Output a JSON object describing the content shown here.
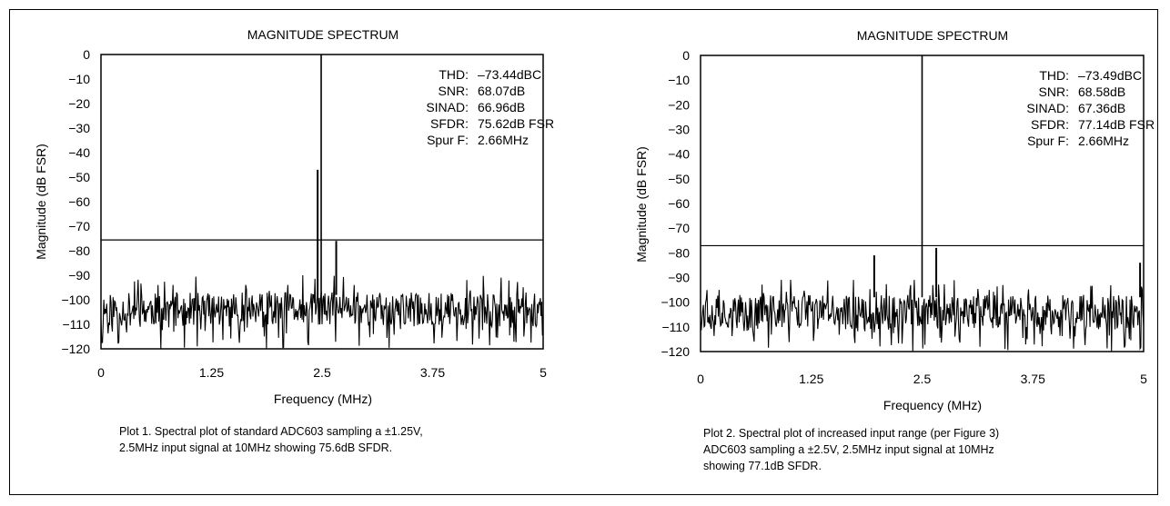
{
  "chart_data": [
    {
      "type": "line",
      "title": "MAGNITUDE SPECTRUM",
      "xlabel": "Frequency (MHz)",
      "ylabel": "Magnitude (dB FSR)",
      "xlim": [
        0,
        5
      ],
      "ylim": [
        -120,
        0
      ],
      "xticks": [
        "0",
        "1.25",
        "2.5",
        "3.75",
        "5"
      ],
      "yticks": [
        "0",
        "−10",
        "−20",
        "−30",
        "−40",
        "−50",
        "−60",
        "−70",
        "−80",
        "−90",
        "−100",
        "−110",
        "−120"
      ],
      "reference_line_db": -75.6,
      "noise_floor_db": -104,
      "noise_seed": 11,
      "spurs": [
        {
          "x": 2.45,
          "y": -47
        },
        {
          "x": 2.49,
          "y": 0
        },
        {
          "x": 2.66,
          "y": -76
        }
      ],
      "stats": [
        {
          "label": "THD:",
          "value": "–73.44dBC"
        },
        {
          "label": "SNR:",
          "value": "68.07dB"
        },
        {
          "label": "SINAD:",
          "value": "66.96dB"
        },
        {
          "label": "SFDR:",
          "value": "75.62dB FSR"
        },
        {
          "label": "Spur F:",
          "value": "2.66MHz"
        }
      ],
      "caption": "Plot 1. Spectral plot of standard ADC603 sampling a ±1.25V,\n2.5MHz input signal at 10MHz showing 75.6dB SFDR."
    },
    {
      "type": "line",
      "title": "MAGNITUDE SPECTRUM",
      "xlabel": "Frequency (MHz)",
      "ylabel": "Magnitude (dB FSR)",
      "xlim": [
        0,
        5
      ],
      "ylim": [
        -120,
        0
      ],
      "xticks": [
        "0",
        "1.25",
        "2.5",
        "3.75",
        "5"
      ],
      "yticks": [
        "0",
        "−10",
        "−20",
        "−30",
        "−40",
        "−50",
        "−60",
        "−70",
        "−80",
        "−90",
        "−100",
        "−110",
        "−120"
      ],
      "reference_line_db": -77.1,
      "noise_floor_db": -104,
      "noise_seed": 37,
      "spurs": [
        {
          "x": 1.96,
          "y": -81
        },
        {
          "x": 2.5,
          "y": 0
        },
        {
          "x": 2.66,
          "y": -78
        },
        {
          "x": 4.96,
          "y": -84
        }
      ],
      "stats": [
        {
          "label": "THD:",
          "value": "–73.49dBC"
        },
        {
          "label": "SNR:",
          "value": "68.58dB"
        },
        {
          "label": "SINAD:",
          "value": "67.36dB"
        },
        {
          "label": "SFDR:",
          "value": "77.14dB FSR"
        },
        {
          "label": "Spur F:",
          "value": "2.66MHz"
        }
      ],
      "caption": "Plot 2. Spectral plot of increased input range (per Figure 3)\nADC603 sampling a ±2.5V, 2.5MHz input signal at 10MHz\nshowing 77.1dB SFDR."
    }
  ]
}
